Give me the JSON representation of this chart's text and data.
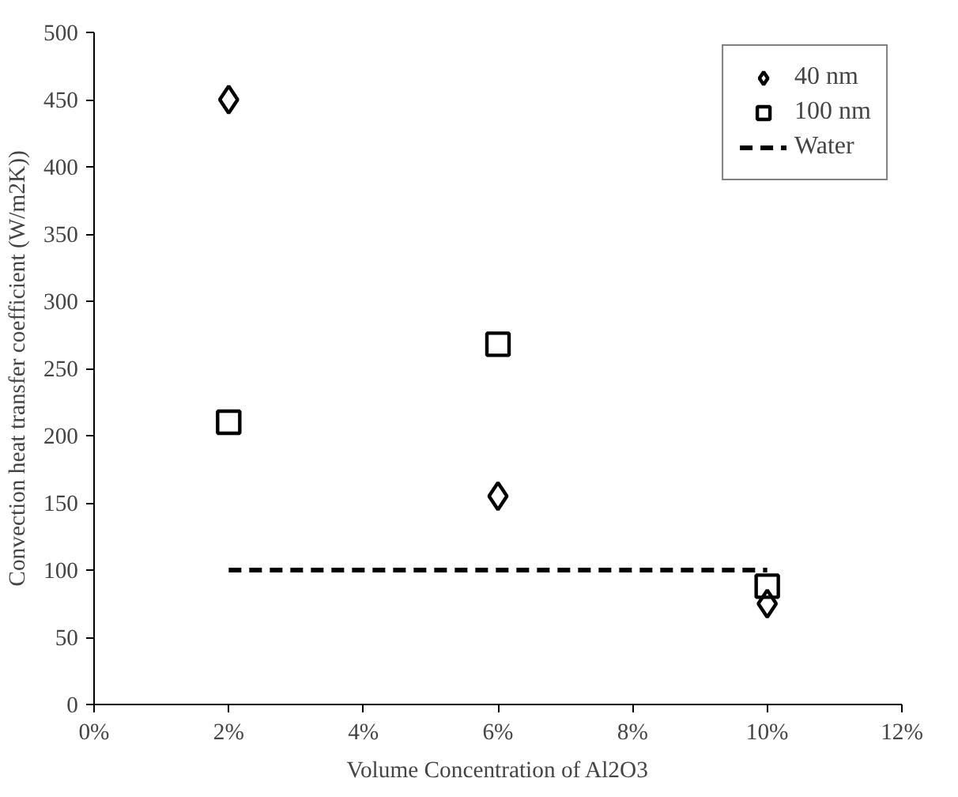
{
  "chart_data": {
    "type": "scatter",
    "xlabel": "Volume Concentration of Al2O3",
    "ylabel": "Convection heat transfer coefficient (W/m2K))",
    "x": [
      2,
      6,
      10
    ],
    "series": [
      {
        "name": "40 nm",
        "color": "#000000",
        "marker": "diamond",
        "values": [
          450,
          155,
          75
        ]
      },
      {
        "name": "100 nm",
        "color": "#000000",
        "marker": "square",
        "values": [
          210,
          268,
          88
        ]
      },
      {
        "name": "Water",
        "type": "line",
        "color": "#000000",
        "line_style": "dashed",
        "marker": "none",
        "x": [
          2,
          10
        ],
        "values": [
          100,
          100
        ]
      }
    ],
    "xlim": [
      0,
      12
    ],
    "xticks": [
      {
        "value": 0,
        "label": "0%"
      },
      {
        "value": 2,
        "label": "2%"
      },
      {
        "value": 4,
        "label": "4%"
      },
      {
        "value": 6,
        "label": "6%"
      },
      {
        "value": 8,
        "label": "8%"
      },
      {
        "value": 10,
        "label": "10%"
      },
      {
        "value": 12,
        "label": "12%"
      }
    ],
    "ylim": [
      0,
      500
    ],
    "yticks": [
      0,
      50,
      100,
      150,
      200,
      250,
      300,
      350,
      400,
      450,
      500
    ],
    "grid": false,
    "legend": "top right"
  }
}
